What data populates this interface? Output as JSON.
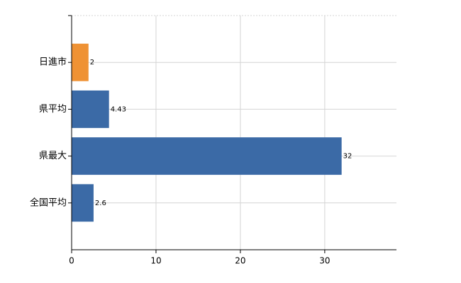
{
  "chart_data": {
    "type": "hbar",
    "categories": [
      "日進市",
      "県平均",
      "県最大",
      "全国平均"
    ],
    "values": [
      2,
      4.43,
      32,
      2.6
    ],
    "colors": [
      "#ef9234",
      "#3b6aa6",
      "#3b6aa6",
      "#3b6aa6"
    ],
    "xlim": [
      0,
      38.5
    ],
    "xticks": [
      0,
      10,
      20,
      30
    ],
    "grid": true
  }
}
